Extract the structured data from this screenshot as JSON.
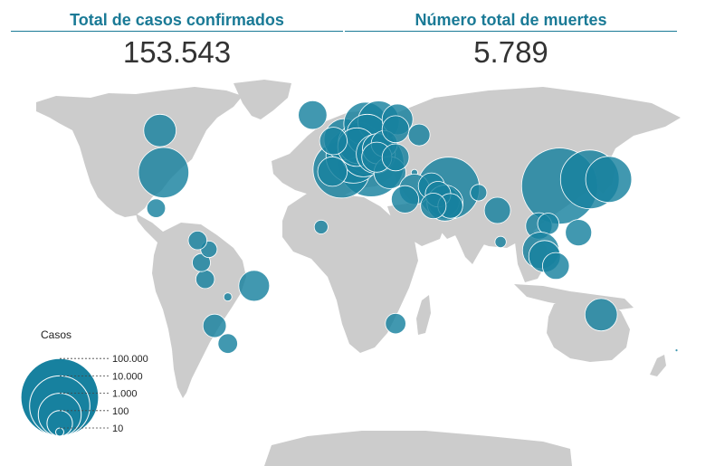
{
  "stats": {
    "confirmed_label": "Total de casos confirmados",
    "confirmed_value": "153.543",
    "deaths_label": "Número total de muertes",
    "deaths_value": "5.789"
  },
  "legend": {
    "title": "Casos",
    "scale": [
      {
        "label": "100.000",
        "value": 100000
      },
      {
        "label": "10.000",
        "value": 10000
      },
      {
        "label": "1.000",
        "value": 1000
      },
      {
        "label": "100",
        "value": 100
      },
      {
        "label": "10",
        "value": 10
      }
    ]
  },
  "colors": {
    "bubble": "#17819f",
    "land": "#cccccc",
    "accent": "#1a7a96"
  },
  "bubbles": [
    {
      "region": "china",
      "lon": 112,
      "lat": 33,
      "cases": 81000
    },
    {
      "region": "korea",
      "lon": 128,
      "lat": 36,
      "cases": 8100
    },
    {
      "region": "japan",
      "lon": 138,
      "lat": 36,
      "cases": 1500
    },
    {
      "region": "iran",
      "lon": 53,
      "lat": 32,
      "cases": 12700
    },
    {
      "region": "italy",
      "lon": 12,
      "lat": 43,
      "cases": 21000
    },
    {
      "region": "spain",
      "lon": -3.7,
      "lat": 40.4,
      "cases": 6400
    },
    {
      "region": "germany",
      "lon": 10,
      "lat": 51,
      "cases": 4500
    },
    {
      "region": "france",
      "lon": 2.5,
      "lat": 46.5,
      "cases": 4500
    },
    {
      "region": "switzerland",
      "lon": 8,
      "lat": 47,
      "cases": 1130
    },
    {
      "region": "uk",
      "lon": -2,
      "lat": 54,
      "cases": 800
    },
    {
      "region": "netherlands",
      "lon": 5.5,
      "lat": 52.3,
      "cases": 800
    },
    {
      "region": "norway",
      "lon": 9,
      "lat": 61,
      "cases": 1050
    },
    {
      "region": "sweden",
      "lon": 16,
      "lat": 62,
      "cases": 800
    },
    {
      "region": "denmark",
      "lon": 10,
      "lat": 56,
      "cases": 800
    },
    {
      "region": "belgium",
      "lon": 4.5,
      "lat": 50.5,
      "cases": 560
    },
    {
      "region": "austria",
      "lon": 14.5,
      "lat": 47.5,
      "cases": 600
    },
    {
      "region": "finland",
      "lon": 26,
      "lat": 63,
      "cases": 200
    },
    {
      "region": "russia",
      "lon": 37.5,
      "lat": 56,
      "cases": 60
    },
    {
      "region": "iceland",
      "lon": -19,
      "lat": 65,
      "cases": 150
    },
    {
      "region": "ireland",
      "lon": -8,
      "lat": 53.3,
      "cases": 130
    },
    {
      "region": "portugal",
      "lon": -8.5,
      "lat": 39.5,
      "cases": 170
    },
    {
      "region": "czechia",
      "lon": 15.5,
      "lat": 49.8,
      "cases": 190
    },
    {
      "region": "poland",
      "lon": 19,
      "lat": 52,
      "cases": 110
    },
    {
      "region": "greece",
      "lon": 22,
      "lat": 39,
      "cases": 230
    },
    {
      "region": "slovenia",
      "lon": 15,
      "lat": 46,
      "cases": 180
    },
    {
      "region": "romania",
      "lon": 25,
      "lat": 45.9,
      "cases": 120
    },
    {
      "region": "estonia",
      "lon": 25,
      "lat": 58.6,
      "cases": 120
    },
    {
      "region": "turkey",
      "lon": 35,
      "lat": 39,
      "cases": 8
    },
    {
      "region": "israel",
      "lon": 35,
      "lat": 31.5,
      "cases": 190
    },
    {
      "region": "egypt",
      "lon": 30,
      "lat": 27,
      "cases": 126
    },
    {
      "region": "iraq",
      "lon": 44,
      "lat": 33,
      "cases": 110
    },
    {
      "region": "bahrain",
      "lon": 50.5,
      "lat": 26,
      "cases": 210
    },
    {
      "region": "qatar",
      "lon": 51.2,
      "lat": 25.3,
      "cases": 400
    },
    {
      "region": "kuwait",
      "lon": 47.5,
      "lat": 29.3,
      "cases": 100
    },
    {
      "region": "uae",
      "lon": 54,
      "lat": 24,
      "cases": 90
    },
    {
      "region": "saudi",
      "lon": 45,
      "lat": 24,
      "cases": 100
    },
    {
      "region": "pakistan",
      "lon": 69,
      "lat": 30,
      "cases": 30
    },
    {
      "region": "india",
      "lon": 79,
      "lat": 22,
      "cases": 110
    },
    {
      "region": "sri-lanka",
      "lon": 80.7,
      "lat": 7.8,
      "cases": 15
    },
    {
      "region": "usa",
      "lon": -98,
      "lat": 39,
      "cases": 2700
    },
    {
      "region": "canada",
      "lon": -100,
      "lat": 58,
      "cases": 250
    },
    {
      "region": "mexico",
      "lon": -102,
      "lat": 23,
      "cases": 40
    },
    {
      "region": "brazil",
      "lon": -50,
      "lat": -12,
      "cases": 200
    },
    {
      "region": "peru",
      "lon": -76,
      "lat": -9,
      "cases": 40
    },
    {
      "region": "ecuador",
      "lon": -78,
      "lat": -1.5,
      "cases": 37
    },
    {
      "region": "colombia",
      "lon": -74,
      "lat": 4.5,
      "cases": 30
    },
    {
      "region": "chile",
      "lon": -71,
      "lat": -30,
      "cases": 75
    },
    {
      "region": "argentina",
      "lon": -64,
      "lat": -38,
      "cases": 45
    },
    {
      "region": "panama",
      "lon": -80,
      "lat": 8.5,
      "cases": 40
    },
    {
      "region": "bolivia",
      "lon": -64,
      "lat": -17,
      "cases": 10
    },
    {
      "region": "thailand",
      "lon": 101,
      "lat": 15,
      "cases": 114
    },
    {
      "region": "vietnam",
      "lon": 106,
      "lat": 16,
      "cases": 57
    },
    {
      "region": "philippines",
      "lon": 122,
      "lat": 12,
      "cases": 111
    },
    {
      "region": "malaysia",
      "lon": 102,
      "lat": 4,
      "cases": 428
    },
    {
      "region": "singapore",
      "lon": 104,
      "lat": 1.3,
      "cases": 226
    },
    {
      "region": "indonesia",
      "lon": 110,
      "lat": -3,
      "cases": 117
    },
    {
      "region": "australia",
      "lon": 134,
      "lat": -25,
      "cases": 250
    },
    {
      "region": "south-africa",
      "lon": 25,
      "lat": -29,
      "cases": 51
    },
    {
      "region": "senegal",
      "lon": -14.5,
      "lat": 14.5,
      "cases": 21
    },
    {
      "region": "new-zealand",
      "lon": 174,
      "lat": -41,
      "cases": 2
    }
  ]
}
